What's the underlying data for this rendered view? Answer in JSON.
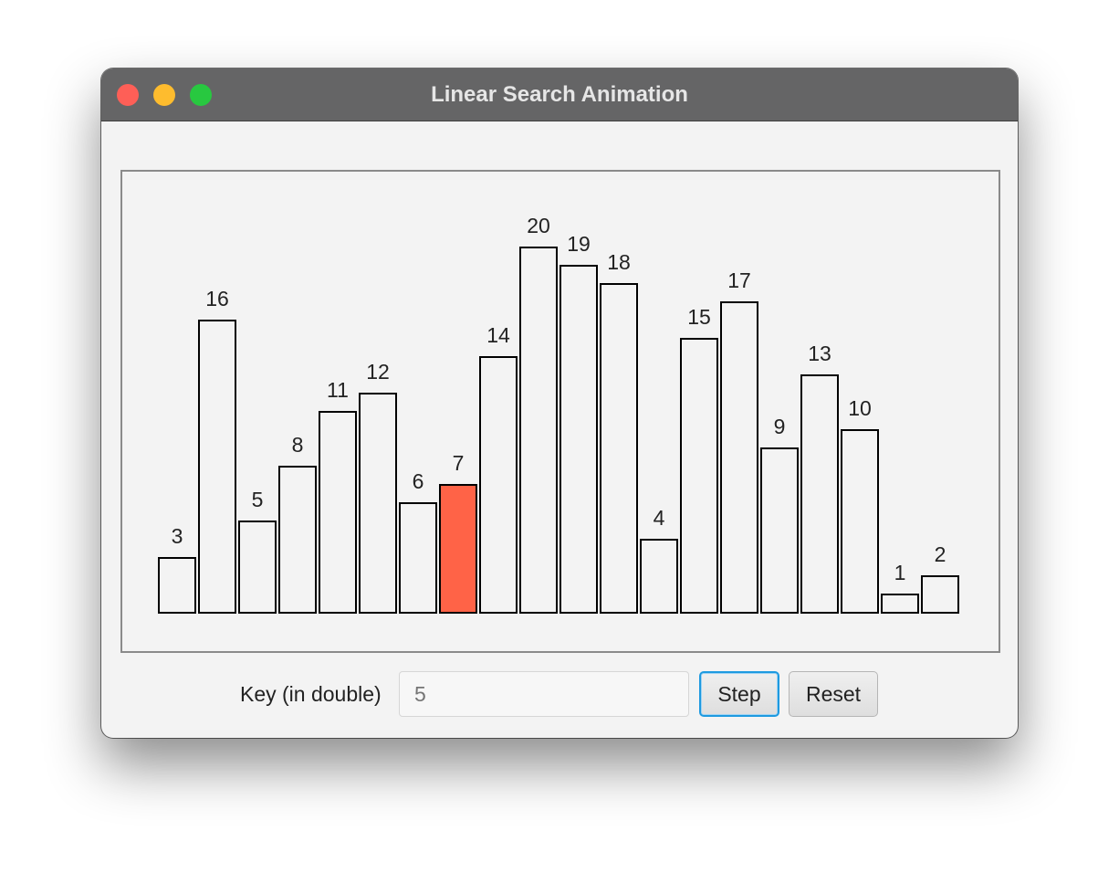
{
  "window": {
    "title": "Linear Search Animation"
  },
  "controls": {
    "key_label": "Key (in double)",
    "key_value": "",
    "key_placeholder": "5",
    "step_label": "Step",
    "reset_label": "Reset"
  },
  "chart_data": {
    "type": "bar",
    "values": [
      3,
      16,
      5,
      8,
      11,
      12,
      6,
      7,
      14,
      20,
      19,
      18,
      4,
      15,
      17,
      9,
      13,
      10,
      1,
      2
    ],
    "highlight_index": 7,
    "bar_fill": "#f3f3f3",
    "highlight_fill": "#ff6347",
    "bar_stroke": "#000000",
    "label_color": "#222222",
    "ylim": [
      0,
      20
    ]
  }
}
